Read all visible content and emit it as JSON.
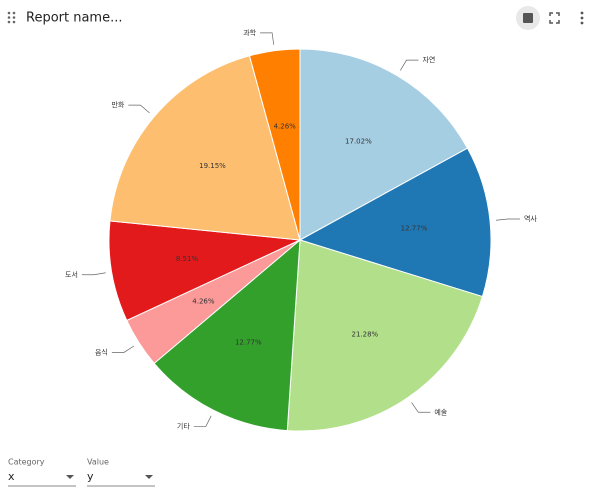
{
  "header": {
    "title": "Report name..."
  },
  "chart_data": {
    "type": "pie",
    "categories": [
      "자연",
      "역사",
      "예술",
      "기타",
      "음식",
      "도서",
      "만화",
      "과학"
    ],
    "values": [
      17.02,
      12.77,
      21.28,
      12.77,
      4.26,
      8.51,
      19.15,
      4.26
    ],
    "value_labels": [
      "17.02%",
      "12.77%",
      "21.28%",
      "12.77%",
      "4.26%",
      "8.51%",
      "19.15%",
      "4.26%"
    ],
    "colors": [
      "#a6cee3",
      "#1f78b4",
      "#b2df8a",
      "#33a02c",
      "#fb9a99",
      "#e31a1c",
      "#fdbf6f",
      "#ff7f00"
    ]
  },
  "controls": [
    {
      "label": "Category",
      "value": "x"
    },
    {
      "label": "Value",
      "value": "y"
    }
  ]
}
